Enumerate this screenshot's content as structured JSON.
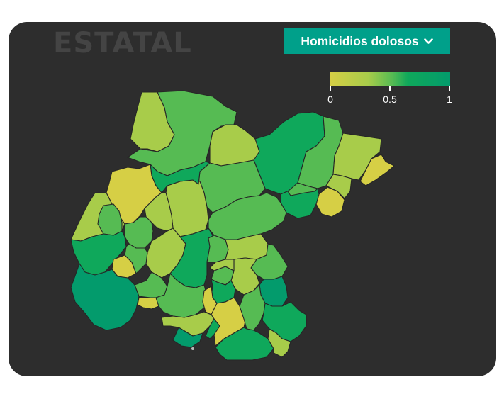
{
  "header": {
    "title": "ESTATAL"
  },
  "indicator_select": {
    "selected": "Homicidios dolosos",
    "icon": "chevron-down-icon"
  },
  "legend": {
    "ticks": [
      "0",
      "0.5",
      "1"
    ],
    "colors": [
      "#d6cf45",
      "#a8cc4a",
      "#56bb53",
      "#0fa85b",
      "#039b6c"
    ]
  },
  "map": {
    "region_count": 46,
    "border_color": "#262626"
  }
}
